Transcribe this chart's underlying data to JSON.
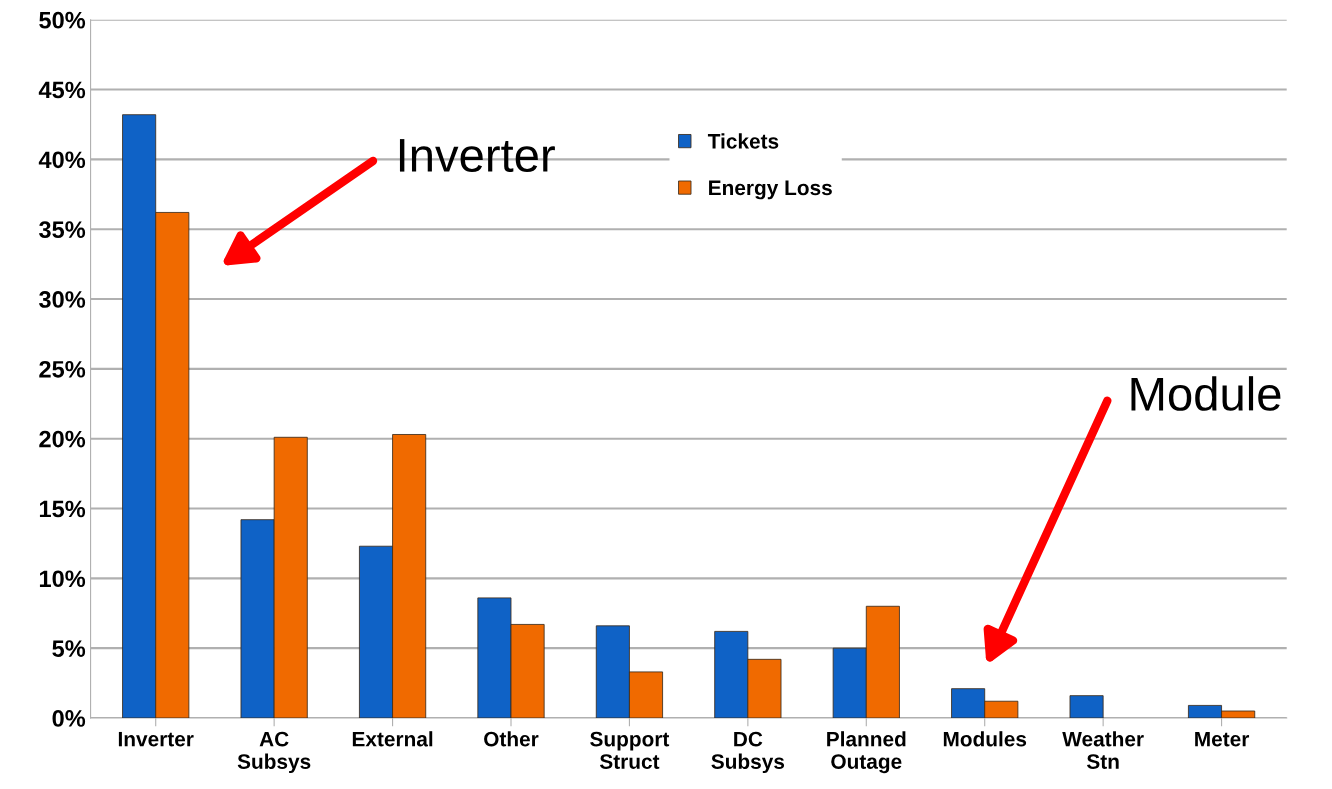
{
  "chart_data": {
    "type": "bar",
    "categories": [
      "Inverter",
      "AC\nSubsys",
      "External",
      "Other",
      "Support\nStruct",
      "DC\nSubsys",
      "Planned\nOutage",
      "Modules",
      "Weather\nStn",
      "Meter"
    ],
    "series": [
      {
        "name": "Tickets",
        "color": "#0f62c6",
        "values": [
          43.2,
          14.2,
          12.3,
          8.6,
          6.6,
          6.2,
          5.0,
          2.1,
          1.6,
          0.9
        ]
      },
      {
        "name": "Energy Loss",
        "color": "#f06a00",
        "values": [
          36.2,
          20.1,
          20.3,
          6.7,
          3.3,
          4.2,
          8.0,
          1.2,
          null,
          0.5
        ]
      }
    ],
    "ylim": [
      0,
      50
    ],
    "yticks": [
      {
        "value": 0,
        "label": "0%"
      },
      {
        "value": 5,
        "label": "5%"
      },
      {
        "value": 10,
        "label": "10%"
      },
      {
        "value": 15,
        "label": "15%"
      },
      {
        "value": 20,
        "label": "20%"
      },
      {
        "value": 25,
        "label": "25%"
      },
      {
        "value": 30,
        "label": "30%"
      },
      {
        "value": 35,
        "label": "35%"
      },
      {
        "value": 40,
        "label": "40%"
      },
      {
        "value": 45,
        "label": "45%"
      },
      {
        "value": 50,
        "label": "50%"
      }
    ],
    "grid": "y",
    "legend": "top",
    "annotations": [
      "Inverter",
      "Module"
    ]
  }
}
